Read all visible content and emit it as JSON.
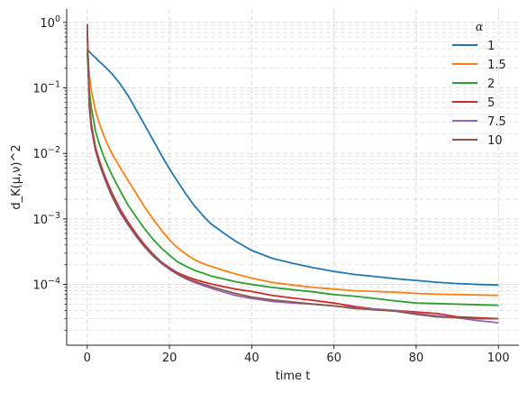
{
  "chart_data": {
    "type": "line",
    "title": "",
    "xlabel": "time t",
    "ylabel": "d_K(μ,ν)^2",
    "yscale": "log",
    "xlim": [
      -5,
      105
    ],
    "ylim": [
      1.18e-05,
      1.6
    ],
    "x_ticks": [
      0,
      20,
      40,
      60,
      80,
      100
    ],
    "x_tick_labels": [
      "0",
      "20",
      "40",
      "60",
      "80",
      "100"
    ],
    "y_ticks": [
      0.0001,
      0.001,
      0.01,
      0.1,
      1
    ],
    "y_tick_labels": [
      {
        "base": "10",
        "exp": "−4"
      },
      {
        "base": "10",
        "exp": "−3"
      },
      {
        "base": "10",
        "exp": "−2"
      },
      {
        "base": "10",
        "exp": "−1"
      },
      {
        "base": "10",
        "exp": "0"
      }
    ],
    "grid": "both major and minor, dashed",
    "legend": {
      "title": "α",
      "placement": "top-right"
    },
    "x": [
      0,
      0.5,
      1,
      2,
      3,
      4,
      5,
      6,
      8,
      10,
      12,
      14,
      16,
      18,
      20,
      22,
      24,
      26,
      28,
      30,
      33,
      36,
      40,
      45,
      50,
      55,
      60,
      65,
      70,
      75,
      80,
      85,
      90,
      95,
      100
    ],
    "series": [
      {
        "name": "1",
        "color": "#1f77b4",
        "values": [
          0.38,
          0.36,
          0.33,
          0.29,
          0.25,
          0.22,
          0.19,
          0.165,
          0.115,
          0.075,
          0.045,
          0.027,
          0.016,
          0.0095,
          0.0058,
          0.0037,
          0.0024,
          0.0016,
          0.00115,
          0.00085,
          0.00062,
          0.00046,
          0.00033,
          0.00025,
          0.00021,
          0.00018,
          0.000158,
          0.000142,
          0.000132,
          0.000122,
          0.000115,
          0.000108,
          0.000103,
          0.0001,
          9.8e-05
        ]
      },
      {
        "name": "1.5",
        "color": "#ff7f0e",
        "values": [
          0.4,
          0.16,
          0.09,
          0.045,
          0.028,
          0.019,
          0.0135,
          0.01,
          0.0061,
          0.0038,
          0.0024,
          0.0015,
          0.001,
          0.00068,
          0.00048,
          0.00036,
          0.00029,
          0.00024,
          0.00021,
          0.00019,
          0.000165,
          0.000145,
          0.000125,
          0.000107,
          9.8e-05,
          9e-05,
          8.5e-05,
          8e-05,
          7.8e-05,
          7.6e-05,
          7.3e-05,
          7.1e-05,
          7e-05,
          6.9e-05,
          6.8e-05
        ]
      },
      {
        "name": "2",
        "color": "#2ca02c",
        "values": [
          0.35,
          0.09,
          0.05,
          0.022,
          0.0135,
          0.009,
          0.0064,
          0.0047,
          0.0027,
          0.0016,
          0.00105,
          0.0007,
          0.00049,
          0.00036,
          0.00028,
          0.00022,
          0.00019,
          0.000165,
          0.00015,
          0.000135,
          0.000122,
          0.00011,
          0.0001,
          9e-05,
          8.3e-05,
          7.7e-05,
          7e-05,
          6.6e-05,
          6.1e-05,
          5.6e-05,
          5.2e-05,
          5.1e-05,
          5e-05,
          4.9e-05,
          4.8e-05
        ]
      },
      {
        "name": "5",
        "color": "#d62728",
        "values": [
          0.75,
          0.06,
          0.028,
          0.0125,
          0.0076,
          0.005,
          0.0035,
          0.0025,
          0.0014,
          0.00088,
          0.00058,
          0.0004,
          0.00029,
          0.00022,
          0.00018,
          0.00015,
          0.000133,
          0.00012,
          0.00011,
          0.000102,
          9.3e-05,
          8.5e-05,
          7.8e-05,
          6.8e-05,
          6.2e-05,
          5.7e-05,
          5.2e-05,
          4.6e-05,
          4.2e-05,
          4e-05,
          3.8e-05,
          3.6e-05,
          3.2e-05,
          3.1e-05,
          3e-05
        ]
      },
      {
        "name": "7.5",
        "color": "#9467bd",
        "values": [
          0.85,
          0.05,
          0.024,
          0.011,
          0.0067,
          0.0045,
          0.0031,
          0.0022,
          0.00125,
          0.0008,
          0.00053,
          0.00037,
          0.00027,
          0.00021,
          0.00017,
          0.000142,
          0.000122,
          0.000108,
          9.7e-05,
          8.8e-05,
          7.7e-05,
          6.8e-05,
          6.1e-05,
          5.5e-05,
          5.2e-05,
          5e-05,
          4.7e-05,
          4.4e-05,
          4.2e-05,
          4e-05,
          3.6e-05,
          3.3e-05,
          3.1e-05,
          2.8e-05,
          2.6e-05
        ]
      },
      {
        "name": "10",
        "color": "#8c564b",
        "values": [
          0.95,
          0.055,
          0.025,
          0.0115,
          0.007,
          0.0047,
          0.0032,
          0.0023,
          0.0013,
          0.00082,
          0.00055,
          0.00038,
          0.00028,
          0.000215,
          0.000175,
          0.000145,
          0.000125,
          0.000112,
          0.000102,
          9.3e-05,
          8.2e-05,
          7.3e-05,
          6.4e-05,
          5.8e-05,
          5.4e-05,
          5e-05,
          4.7e-05,
          4.3e-05,
          4.1e-05,
          3.9e-05,
          3.5e-05,
          3.2e-05,
          3.1e-05,
          3e-05,
          3e-05
        ]
      }
    ]
  }
}
